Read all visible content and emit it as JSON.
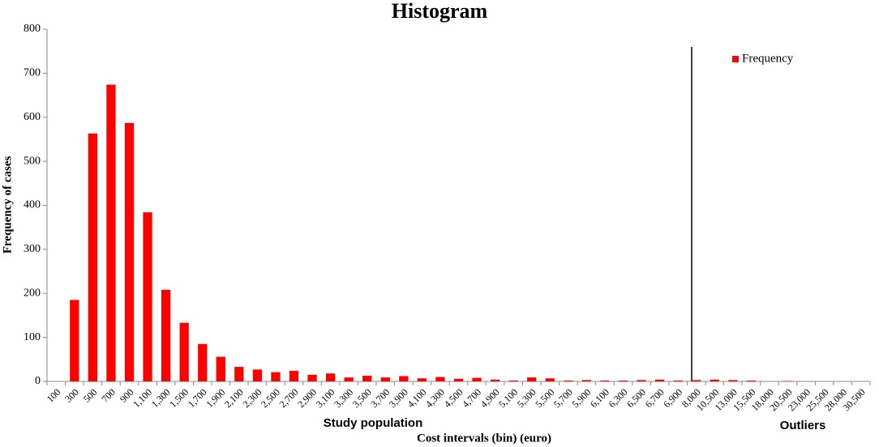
{
  "chart_data": {
    "type": "bar",
    "title": "Histogram",
    "x_label": "Cost intervals (bin) (euro)",
    "y_label": "Frequency of cases",
    "annotations": [
      "Study population",
      "Outliers"
    ],
    "categories": [
      "100",
      "300",
      "500",
      "700",
      "900",
      "1,100",
      "1,300",
      "1,500",
      "1,700",
      "1,900",
      "2,100",
      "2,300",
      "2,500",
      "2,700",
      "2,900",
      "3,100",
      "3,300",
      "3,500",
      "3,700",
      "3,900",
      "4,100",
      "4,300",
      "4,500",
      "4,700",
      "4,900",
      "5,100",
      "5,300",
      "5,500",
      "5,700",
      "5,900",
      "6,100",
      "6,300",
      "6,500",
      "6,700",
      "6,900",
      "8,000",
      "10,500",
      "13,000",
      "15,500",
      "18,000",
      "20,500",
      "23,000",
      "25,500",
      "28,000",
      "30,500"
    ],
    "series": [
      {
        "name": "Frequency",
        "color": "#ff0000",
        "values": [
          0,
          185,
          563,
          674,
          587,
          384,
          208,
          133,
          85,
          56,
          33,
          27,
          21,
          24,
          15,
          18,
          9,
          13,
          9,
          12,
          7,
          10,
          6,
          8,
          4,
          2,
          9,
          7,
          2,
          3,
          2,
          2,
          3,
          4,
          2,
          3,
          4,
          3,
          2,
          0,
          1,
          0,
          0,
          0,
          0
        ]
      }
    ],
    "ylim": [
      0,
      800
    ],
    "yticks": [
      0,
      100,
      200,
      300,
      400,
      500,
      600,
      700,
      800
    ],
    "grid": false,
    "legend": "top-right"
  }
}
